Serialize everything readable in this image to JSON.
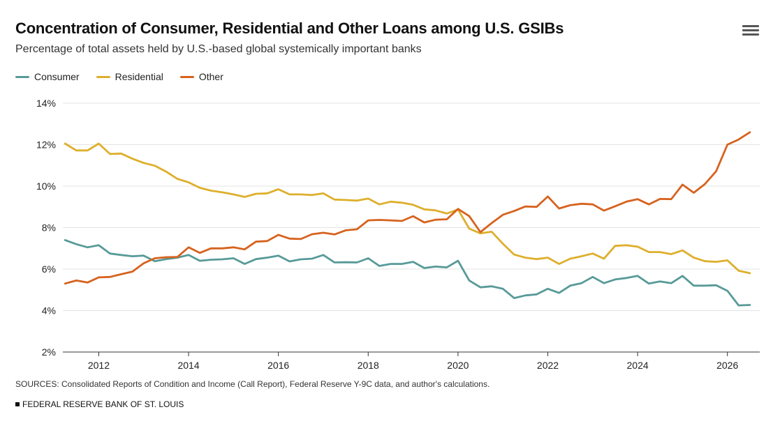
{
  "header": {
    "title": "Concentration of Consumer, Residential and Other Loans among U.S. GSIBs",
    "subtitle": "Percentage of total assets held by U.S.-based global systemically important banks"
  },
  "menu": {
    "icon": "hamburger-menu-icon"
  },
  "legend": [
    {
      "label": "Consumer",
      "color": "#579a98"
    },
    {
      "label": "Residential",
      "color": "#deaf2c"
    },
    {
      "label": "Other",
      "color": "#d6621e"
    }
  ],
  "footer": {
    "sources": "SOURCES: Consolidated Reports of Condition and Income (Call Report), Federal Reserve Y-9C data, and author's calculations.",
    "org": "FEDERAL RESERVE BANK OF ST. LOUIS"
  },
  "chart_data": {
    "type": "line",
    "title": "Concentration of Consumer, Residential and Other Loans among U.S. GSIBs",
    "subtitle": "Percentage of total assets held by U.S.-based global systemically important banks",
    "xlabel": "",
    "ylabel": "",
    "xlim": [
      2011.2,
      2026.72
    ],
    "ylim": [
      2,
      14
    ],
    "x_ticks": [
      2012,
      2014,
      2016,
      2018,
      2020,
      2022,
      2024,
      2026
    ],
    "y_ticks": [
      2,
      4,
      6,
      8,
      10,
      12,
      14
    ],
    "y_tick_labels": [
      "2%",
      "4%",
      "6%",
      "8%",
      "10%",
      "12%",
      "14%"
    ],
    "grid": "horizontal",
    "legend_position": "top-left",
    "x": [
      2011.25,
      2011.5,
      2011.75,
      2012,
      2012.25,
      2012.5,
      2012.75,
      2013,
      2013.25,
      2013.5,
      2013.75,
      2014,
      2014.25,
      2014.5,
      2014.75,
      2015,
      2015.25,
      2015.5,
      2015.75,
      2016,
      2016.25,
      2016.5,
      2016.75,
      2017,
      2017.25,
      2017.5,
      2017.75,
      2018,
      2018.25,
      2018.5,
      2018.75,
      2019,
      2019.25,
      2019.5,
      2019.75,
      2020,
      2020.25,
      2020.5,
      2020.75,
      2021,
      2021.25,
      2021.5,
      2021.75,
      2022,
      2022.25,
      2022.5,
      2022.75,
      2023,
      2023.25,
      2023.5,
      2023.75,
      2024,
      2024.25,
      2024.5,
      2024.75,
      2025,
      2025.25,
      2025.5,
      2025.75,
      2026,
      2026.25,
      2026.5
    ],
    "series": [
      {
        "name": "Consumer",
        "color": "#579a98",
        "values": [
          7.4,
          7.2,
          7.05,
          7.15,
          6.75,
          6.68,
          6.62,
          6.65,
          6.38,
          6.48,
          6.55,
          6.68,
          6.4,
          6.45,
          6.47,
          6.52,
          6.25,
          6.48,
          6.55,
          6.65,
          6.37,
          6.47,
          6.5,
          6.68,
          6.32,
          6.33,
          6.32,
          6.52,
          6.15,
          6.25,
          6.25,
          6.35,
          6.05,
          6.12,
          6.08,
          6.4,
          5.45,
          5.12,
          5.17,
          5.05,
          4.6,
          4.73,
          4.78,
          5.05,
          4.85,
          5.2,
          5.32,
          5.62,
          5.32,
          5.5,
          5.57,
          5.67,
          5.3,
          5.4,
          5.32,
          5.67,
          5.2,
          5.2,
          5.22,
          4.95,
          4.25,
          4.27
        ]
      },
      {
        "name": "Residential",
        "color": "#deaf2c",
        "values": [
          12.05,
          11.72,
          11.72,
          12.05,
          11.55,
          11.57,
          11.32,
          11.12,
          10.98,
          10.7,
          10.35,
          10.18,
          9.92,
          9.78,
          9.7,
          9.6,
          9.48,
          9.63,
          9.65,
          9.85,
          9.6,
          9.6,
          9.57,
          9.65,
          9.35,
          9.33,
          9.3,
          9.4,
          9.12,
          9.25,
          9.2,
          9.1,
          8.88,
          8.83,
          8.68,
          8.87,
          7.95,
          7.72,
          7.8,
          7.22,
          6.7,
          6.55,
          6.48,
          6.55,
          6.25,
          6.5,
          6.62,
          6.75,
          6.5,
          7.12,
          7.15,
          7.08,
          6.82,
          6.82,
          6.72,
          6.9,
          6.55,
          6.38,
          6.35,
          6.42,
          5.92,
          5.8
        ]
      },
      {
        "name": "Other",
        "color": "#d6621e",
        "values": [
          5.3,
          5.45,
          5.35,
          5.6,
          5.62,
          5.75,
          5.88,
          6.28,
          6.52,
          6.57,
          6.58,
          7.05,
          6.78,
          7.0,
          7.0,
          7.05,
          6.95,
          7.32,
          7.35,
          7.65,
          7.47,
          7.45,
          7.68,
          7.75,
          7.67,
          7.87,
          7.92,
          8.35,
          8.37,
          8.35,
          8.32,
          8.55,
          8.25,
          8.38,
          8.4,
          8.9,
          8.55,
          7.78,
          8.22,
          8.62,
          8.8,
          9.02,
          9.0,
          9.5,
          8.92,
          9.08,
          9.15,
          9.12,
          8.82,
          9.03,
          9.25,
          9.37,
          9.12,
          9.38,
          9.37,
          10.07,
          9.68,
          10.1,
          10.72,
          12.0,
          12.25,
          12.6
        ]
      }
    ]
  }
}
